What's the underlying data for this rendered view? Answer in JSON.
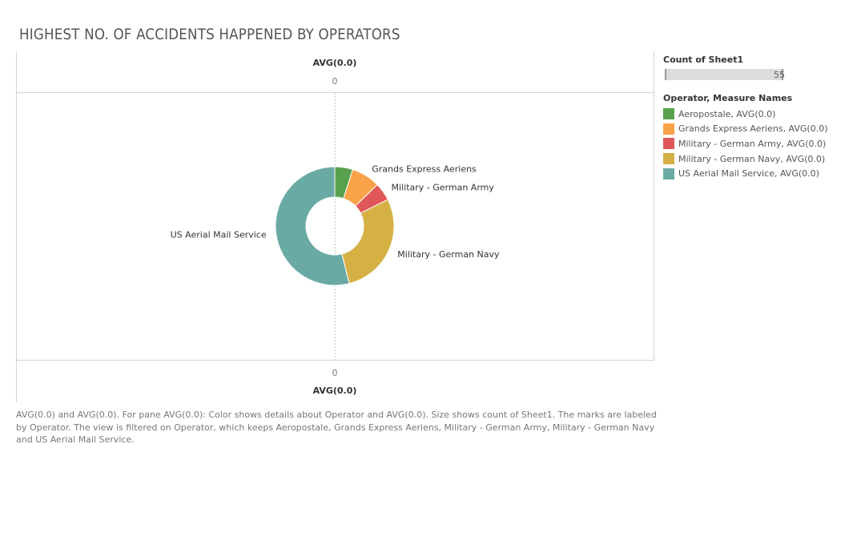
{
  "title": "HIGHEST NO. OF ACCIDENTS HAPPENED BY OPERATORS",
  "axes": {
    "top_title": "AVG(0.0)",
    "top_tick": "0",
    "bottom_tick": "0",
    "bottom_title": "AVG(0.0)"
  },
  "legend": {
    "size_title": "Count of Sheet1",
    "size_max_label": "55",
    "color_title": "Operator, Measure Names",
    "items": [
      {
        "label": "Aeropostale, AVG(0.0)",
        "color": "#59a14f"
      },
      {
        "label": "Grands Express Aeriens, AVG(0.0)",
        "color": "#f9a248"
      },
      {
        "label": "Military - German Army, AVG(0.0)",
        "color": "#e05759"
      },
      {
        "label": "Military - German Navy, AVG(0.0)",
        "color": "#d5b144"
      },
      {
        "label": "US Aerial Mail Service, AVG(0.0)",
        "color": "#6aaaa5"
      }
    ]
  },
  "caption": "AVG(0.0) and AVG(0.0).  For pane AVG(0.0):  Color shows details about Operator and AVG(0.0).  Size shows count of Sheet1.  The marks are labeled by Operator. The view is filtered on Operator, which keeps Aeropostale, Grands Express Aeriens, Military - German Army, Military - German Navy and US Aerial Mail Service.",
  "chart_data": {
    "type": "pie",
    "donut": true,
    "title": "HIGHEST NO. OF ACCIDENTS HAPPENED BY OPERATORS",
    "xlabel": "AVG(0.0)",
    "ylabel": "",
    "categories": [
      "Aeropostale",
      "Grands Express Aeriens",
      "Military - German Army",
      "Military - German Navy",
      "US Aerial Mail Service"
    ],
    "values": [
      5,
      8,
      5,
      29,
      55
    ],
    "colors": [
      "#59a14f",
      "#f9a248",
      "#e05759",
      "#d5b144",
      "#6aaaa5"
    ],
    "slice_labels": [
      "",
      "Grands Express Aeriens",
      "Military - German Army",
      "Military - German Navy",
      "US Aerial Mail Service"
    ],
    "legend_position": "right"
  }
}
